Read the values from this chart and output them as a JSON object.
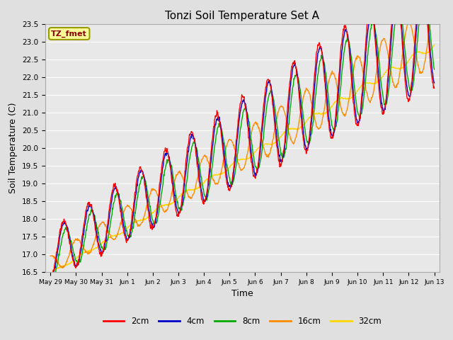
{
  "title": "Tonzi Soil Temperature Set A",
  "xlabel": "Time",
  "ylabel": "Soil Temperature (C)",
  "ylim": [
    16.5,
    23.5
  ],
  "annotation_text": "TZ_fmet",
  "annotation_color": "#8B0000",
  "annotation_bg": "#FFFF99",
  "annotation_border": "#999900",
  "colors": {
    "2cm": "#FF0000",
    "4cm": "#0000CC",
    "8cm": "#00AA00",
    "16cm": "#FF8C00",
    "32cm": "#FFD700"
  },
  "bg_color": "#E8E8E8",
  "grid_color": "#FFFFFF",
  "tick_labels": [
    "May 29",
    "May 30",
    "May 31",
    "Jun 1",
    "Jun 2",
    "Jun 3",
    "Jun 4",
    "Jun 5",
    "Jun 6",
    "Jun 7",
    "Jun 8",
    "Jun 9",
    "Jun 10",
    "Jun 11",
    "Jun 12",
    "Jun 13"
  ],
  "num_points": 960
}
